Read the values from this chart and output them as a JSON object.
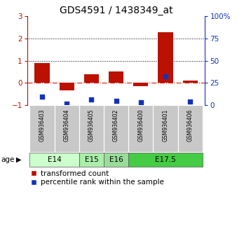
{
  "title": "GDS4591 / 1438349_at",
  "samples": [
    "GSM936403",
    "GSM936404",
    "GSM936405",
    "GSM936402",
    "GSM936400",
    "GSM936401",
    "GSM936406"
  ],
  "transformed_count": [
    0.9,
    -0.35,
    0.4,
    0.5,
    -0.13,
    2.28,
    0.12
  ],
  "percentile_rank_y": [
    -0.62,
    -0.92,
    -0.75,
    -0.8,
    -0.88,
    0.28,
    -0.85
  ],
  "age_groups": [
    {
      "label": "E14",
      "samples": [
        0,
        1
      ],
      "color": "#ccffcc"
    },
    {
      "label": "E15",
      "samples": [
        2
      ],
      "color": "#aaeeaa"
    },
    {
      "label": "E16",
      "samples": [
        3
      ],
      "color": "#99dd99"
    },
    {
      "label": "E17.5",
      "samples": [
        4,
        5,
        6
      ],
      "color": "#44cc44"
    }
  ],
  "bar_color_red": "#bb1100",
  "bar_color_blue": "#1133bb",
  "ylim_left": [
    -1.0,
    3.0
  ],
  "ylim_right": [
    0,
    100
  ],
  "yticks_left": [
    -1,
    0,
    1,
    2,
    3
  ],
  "yticks_right": [
    0,
    25,
    50,
    75,
    100
  ],
  "zero_line_color": "#cc2200",
  "dotted_line_color": "#000000",
  "bg_color": "#ffffff",
  "sample_box_color": "#c8c8c8",
  "title_fontsize": 10,
  "tick_fontsize": 7.5,
  "legend_fontsize": 7.5,
  "bar_width": 0.6
}
